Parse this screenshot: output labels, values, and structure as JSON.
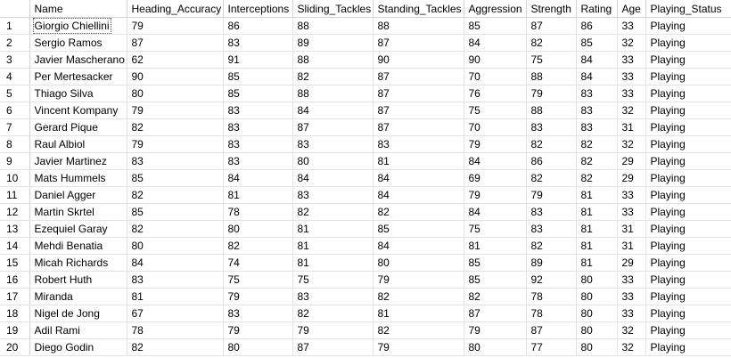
{
  "results_grid": {
    "columns": [
      "",
      "Name",
      "Heading_Accuracy",
      "Interceptions",
      "Sliding_Tackles",
      "Standing_Tackles",
      "Aggression",
      "Strength",
      "Rating",
      "Age",
      "Playing_Status"
    ],
    "rows": [
      [
        "1",
        "Giorgio Chiellini",
        "79",
        "86",
        "88",
        "88",
        "85",
        "87",
        "86",
        "33",
        "Playing"
      ],
      [
        "2",
        "Sergio Ramos",
        "87",
        "83",
        "89",
        "87",
        "84",
        "82",
        "85",
        "32",
        "Playing"
      ],
      [
        "3",
        "Javier Mascherano",
        "62",
        "91",
        "88",
        "90",
        "90",
        "75",
        "84",
        "33",
        "Playing"
      ],
      [
        "4",
        "Per Mertesacker",
        "90",
        "85",
        "82",
        "87",
        "70",
        "88",
        "84",
        "33",
        "Playing"
      ],
      [
        "5",
        "Thiago Silva",
        "80",
        "85",
        "88",
        "87",
        "76",
        "79",
        "83",
        "33",
        "Playing"
      ],
      [
        "6",
        "Vincent Kompany",
        "79",
        "83",
        "84",
        "87",
        "75",
        "88",
        "83",
        "32",
        "Playing"
      ],
      [
        "7",
        "Gerard Pique",
        "82",
        "83",
        "87",
        "87",
        "70",
        "83",
        "83",
        "31",
        "Playing"
      ],
      [
        "8",
        "Raul Albiol",
        "79",
        "83",
        "83",
        "83",
        "79",
        "82",
        "82",
        "32",
        "Playing"
      ],
      [
        "9",
        "Javier Martinez",
        "83",
        "83",
        "80",
        "81",
        "84",
        "86",
        "82",
        "29",
        "Playing"
      ],
      [
        "10",
        "Mats Hummels",
        "85",
        "84",
        "84",
        "84",
        "69",
        "82",
        "82",
        "29",
        "Playing"
      ],
      [
        "11",
        "Daniel Agger",
        "82",
        "81",
        "83",
        "84",
        "79",
        "79",
        "81",
        "33",
        "Playing"
      ],
      [
        "12",
        "Martin Skrtel",
        "85",
        "78",
        "82",
        "82",
        "84",
        "83",
        "81",
        "33",
        "Playing"
      ],
      [
        "13",
        "Ezequiel Garay",
        "82",
        "80",
        "81",
        "85",
        "75",
        "83",
        "81",
        "31",
        "Playing"
      ],
      [
        "14",
        "Mehdi Benatia",
        "80",
        "82",
        "81",
        "84",
        "81",
        "82",
        "81",
        "31",
        "Playing"
      ],
      [
        "15",
        "Micah Richards",
        "84",
        "74",
        "81",
        "80",
        "85",
        "89",
        "81",
        "29",
        "Playing"
      ],
      [
        "16",
        "Robert Huth",
        "83",
        "75",
        "75",
        "79",
        "85",
        "92",
        "80",
        "33",
        "Playing"
      ],
      [
        "17",
        "Miranda",
        "81",
        "79",
        "83",
        "82",
        "82",
        "78",
        "80",
        "33",
        "Playing"
      ],
      [
        "18",
        "Nigel de Jong",
        "67",
        "83",
        "82",
        "81",
        "87",
        "78",
        "80",
        "33",
        "Playing"
      ],
      [
        "19",
        "Adil Rami",
        "78",
        "79",
        "79",
        "82",
        "79",
        "87",
        "80",
        "32",
        "Playing"
      ],
      [
        "20",
        "Diego Godin",
        "82",
        "80",
        "87",
        "79",
        "80",
        "77",
        "80",
        "32",
        "Playing"
      ]
    ],
    "selected_cell": {
      "row": 0,
      "col": 1
    }
  }
}
